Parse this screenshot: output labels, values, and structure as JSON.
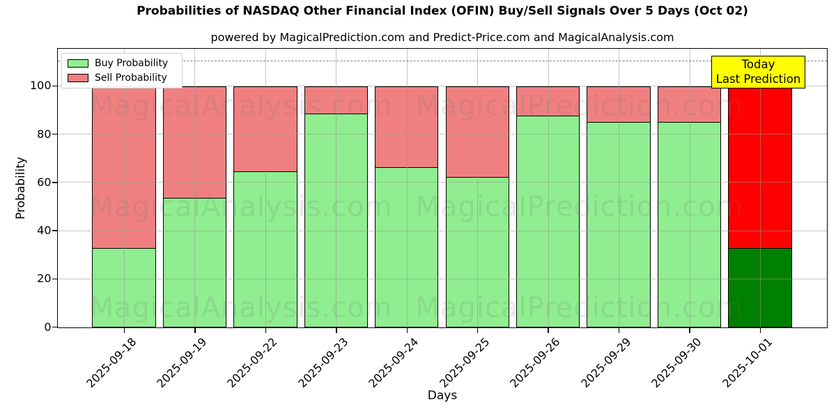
{
  "figure": {
    "title": "Probabilities of NASDAQ Other Financial Index (OFIN) Buy/Sell Signals Over 5 Days (Oct 02)",
    "subtitle": "powered by MagicalPrediction.com and Predict-Price.com and MagicalAnalysis.com",
    "xlabel": "Days",
    "ylabel": "Probability"
  },
  "legend": {
    "items": [
      {
        "label": "Buy Probability",
        "color": "#90EE90"
      },
      {
        "label": "Sell Probability",
        "color": "#F08080"
      }
    ]
  },
  "annotation_box": {
    "line1": "Today",
    "line2": "Last Prediction",
    "bg": "#FFFF00",
    "border": "#000000"
  },
  "watermarks": {
    "left": "MagicalAnalysis.com",
    "right": "MagicalPrediction.com"
  },
  "chart_data": {
    "type": "bar",
    "stacked": true,
    "title": "Probabilities of NASDAQ Other Financial Index (OFIN) Buy/Sell Signals Over 5 Days (Oct 02)",
    "xlabel": "Days",
    "ylabel": "Probability",
    "categories": [
      "2025-09-18",
      "2025-09-19",
      "2025-09-22",
      "2025-09-23",
      "2025-09-24",
      "2025-09-25",
      "2025-09-26",
      "2025-09-29",
      "2025-09-30",
      "2025-10-01"
    ],
    "series": [
      {
        "name": "Buy Probability",
        "color": "#90EE90",
        "today_color": "#008000",
        "values": [
          33,
          54,
          65,
          89,
          66.5,
          62.5,
          88,
          85.5,
          85.5,
          33
        ]
      },
      {
        "name": "Sell Probability",
        "color": "#F08080",
        "today_color": "#FF0000",
        "values": [
          67,
          46,
          35,
          11,
          33.5,
          37.5,
          12,
          14.5,
          14.5,
          67
        ]
      }
    ],
    "today_index": 9,
    "bar_total": 100,
    "yticks": [
      0,
      20,
      40,
      60,
      80,
      100
    ],
    "ylim": [
      0,
      115.3
    ],
    "dashed_line_y": 110,
    "grid": true,
    "legend_position": "upper left"
  }
}
